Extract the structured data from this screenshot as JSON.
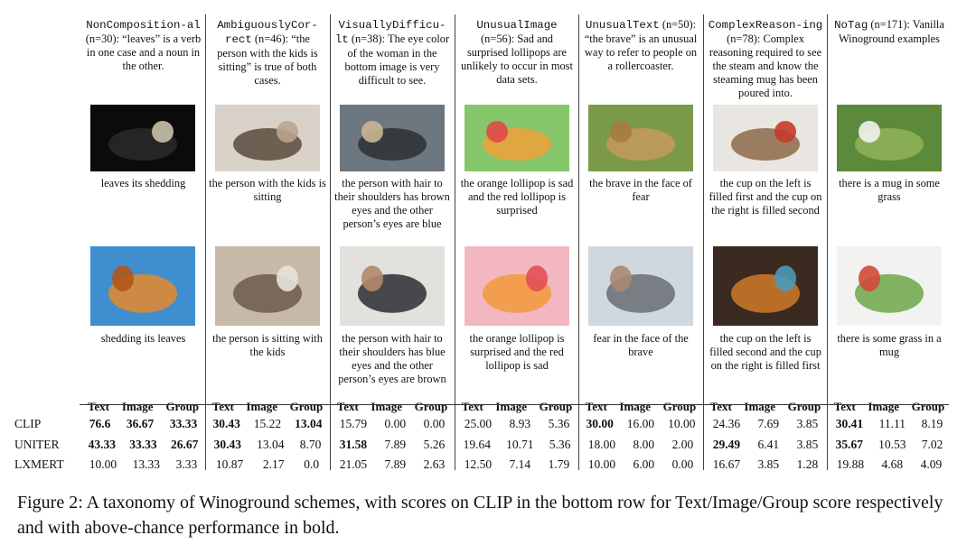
{
  "columns": [
    {
      "tag": "NonComposition-al",
      "count": "(n=30):",
      "desc": "“leaves” is a verb in one case and a noun in the other.",
      "cap1": "leaves its shedding",
      "cap2": "shedding its leaves",
      "img1": "snake-shedding-photo",
      "img2": "autumn-leaves-photo"
    },
    {
      "tag": "AmbiguouslyCor-rect",
      "count": "(n=46):",
      "desc": "“the person with the kids is sitting” is true of both cases.",
      "cap1": "the person with the kids is sitting",
      "cap2": "the person is sitting with the kids",
      "img1": "family-playing-photo",
      "img2": "family-couch-photo"
    },
    {
      "tag": "VisuallyDifficu-lt",
      "count": "(n=38):",
      "desc": "The eye color of the woman in the bottom image is very difficult to see.",
      "cap1": "the person with hair to their shoulders has brown eyes and the other person’s eyes are blue",
      "cap2": "the person with hair to their shoulders has blue eyes and the other person’s eyes are brown",
      "img1": "business-couple-photo",
      "img2": "business-pair-photo"
    },
    {
      "tag": "UnusualImage",
      "count": "(n=56):",
      "desc": "Sad and surprised lollipops are unlikely to occur in most data sets.",
      "cap1": "the orange lollipop is sad and the red lollipop is surprised",
      "cap2": "the orange lollipop is surprised and the red lollipop is sad",
      "img1": "lollipops-green-photo",
      "img2": "lollipops-pink-photo"
    },
    {
      "tag": "UnusualText",
      "count": "(n=50):",
      "desc": "“the brave” is an unusual way to refer to people on a rollercoaster.",
      "cap1": "the brave in the face of fear",
      "cap2": "fear in the face of the brave",
      "img1": "lion-cubs-photo",
      "img2": "rollercoaster-photo"
    },
    {
      "tag": "ComplexReason-ing",
      "count": "(n=78):",
      "desc": "Complex reasoning required to see the steam and know the steaming mug has been poured into.",
      "cap1": "the cup on the left is filled first and the cup on the right is filled second",
      "cap2": "the cup on the left is filled second and the cup on the right is filled first",
      "img1": "tea-pour-photo",
      "img2": "teapot-photo"
    },
    {
      "tag": "NoTag",
      "count": "(n=171):",
      "desc": "Vanilla Winoground examples",
      "cap1": "there is a mug in some grass",
      "cap2": "there is some grass in a mug",
      "img1": "mug-grass-photo",
      "img2": "grass-mug-photo"
    }
  ],
  "score_headers": [
    "Text",
    "Image",
    "Group"
  ],
  "models": [
    {
      "name": "CLIP",
      "scores": [
        [
          "76.6",
          "36.67",
          "33.33"
        ],
        [
          "30.43",
          "15.22",
          "13.04"
        ],
        [
          "15.79",
          "0.00",
          "0.00"
        ],
        [
          "25.00",
          "8.93",
          "5.36"
        ],
        [
          "30.00",
          "16.00",
          "10.00"
        ],
        [
          "24.36",
          "7.69",
          "3.85"
        ],
        [
          "30.41",
          "11.11",
          "8.19"
        ]
      ],
      "bold": [
        [
          1,
          1,
          1
        ],
        [
          1,
          0,
          1
        ],
        [
          0,
          0,
          0
        ],
        [
          0,
          0,
          0
        ],
        [
          1,
          0,
          0
        ],
        [
          0,
          0,
          0
        ],
        [
          1,
          0,
          0
        ]
      ]
    },
    {
      "name": "UNITER",
      "scores": [
        [
          "43.33",
          "33.33",
          "26.67"
        ],
        [
          "30.43",
          "13.04",
          "8.70"
        ],
        [
          "31.58",
          "7.89",
          "5.26"
        ],
        [
          "19.64",
          "10.71",
          "5.36"
        ],
        [
          "18.00",
          "8.00",
          "2.00"
        ],
        [
          "29.49",
          "6.41",
          "3.85"
        ],
        [
          "35.67",
          "10.53",
          "7.02"
        ]
      ],
      "bold": [
        [
          1,
          1,
          1
        ],
        [
          1,
          0,
          0
        ],
        [
          1,
          0,
          0
        ],
        [
          0,
          0,
          0
        ],
        [
          0,
          0,
          0
        ],
        [
          1,
          0,
          0
        ],
        [
          1,
          0,
          0
        ]
      ]
    },
    {
      "name": "LXMERT",
      "scores": [
        [
          "10.00",
          "13.33",
          "3.33"
        ],
        [
          "10.87",
          "2.17",
          "0.0"
        ],
        [
          "21.05",
          "7.89",
          "2.63"
        ],
        [
          "12.50",
          "7.14",
          "1.79"
        ],
        [
          "10.00",
          "6.00",
          "0.00"
        ],
        [
          "16.67",
          "3.85",
          "1.28"
        ],
        [
          "19.88",
          "4.68",
          "4.09"
        ]
      ],
      "bold": [
        [
          0,
          0,
          0
        ],
        [
          0,
          0,
          0
        ],
        [
          0,
          0,
          0
        ],
        [
          0,
          0,
          0
        ],
        [
          0,
          0,
          0
        ],
        [
          0,
          0,
          0
        ],
        [
          0,
          0,
          0
        ]
      ]
    }
  ],
  "caption": "Figure 2: A taxonomy of Winoground schemes, with scores on CLIP in the bottom row for Text/Image/Group score respectively and with above-chance performance in bold."
}
